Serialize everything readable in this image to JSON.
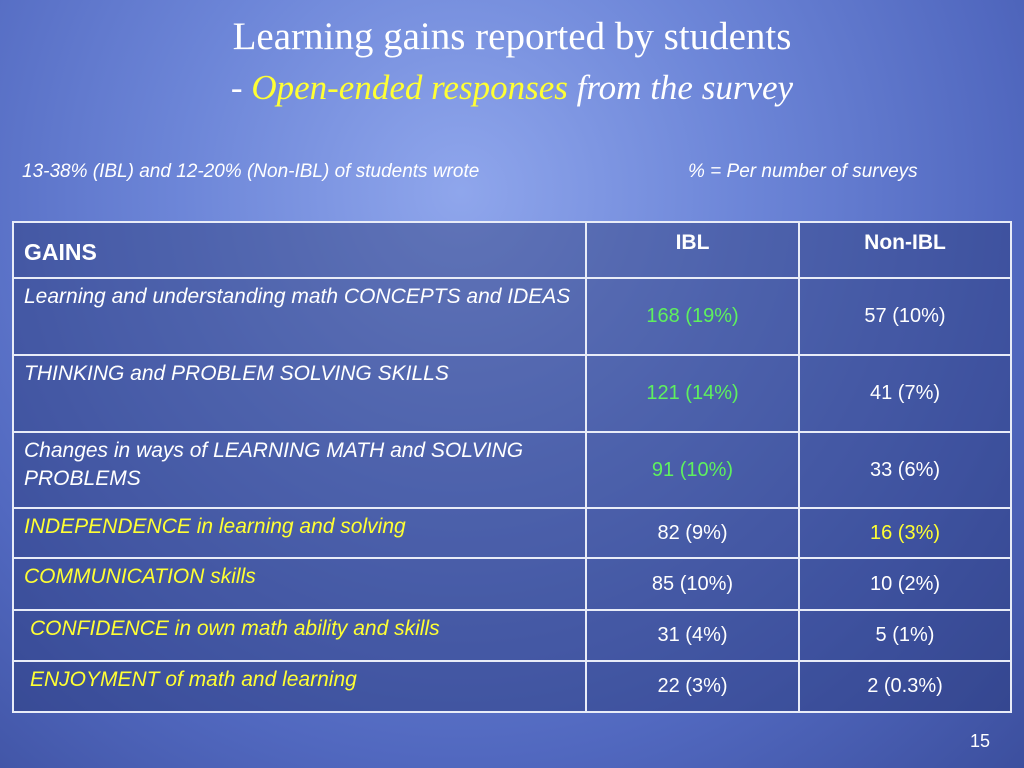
{
  "header": {
    "title": "Learning gains reported by students",
    "subtitle_prefix": "- ",
    "subtitle_highlight": "Open-ended responses",
    "subtitle_suffix": " from the survey"
  },
  "notes": {
    "left": "13-38% (IBL) and 12-20% (Non-IBL) of students wrote",
    "right": "% = Per number of surveys"
  },
  "table": {
    "columns": [
      "GAINS",
      "IBL",
      "Non-IBL"
    ],
    "rows": [
      [
        "Learning and understanding math CONCEPTS and IDEAS",
        "168 (19%)",
        "57 (10%)"
      ],
      [
        "THINKING and PROBLEM SOLVING SKILLS",
        "121 (14%)",
        "41 (7%)"
      ],
      [
        "Changes in ways of LEARNING MATH and SOLVING PROBLEMS",
        "91 (10%)",
        "33 (6%)"
      ],
      [
        "INDEPENDENCE  in learning and solving",
        "82 (9%)",
        "16 (3%)"
      ],
      [
        "COMMUNICATION skills",
        "85 (10%)",
        "10 (2%)"
      ],
      [
        "CONFIDENCE in own math ability and skills",
        "31 (4%)",
        "5 (1%)"
      ],
      [
        "ENJOYMENT of math and learning",
        "22 (3%)",
        "2 (0.3%)"
      ]
    ]
  },
  "footer": {
    "page_number": "15"
  }
}
